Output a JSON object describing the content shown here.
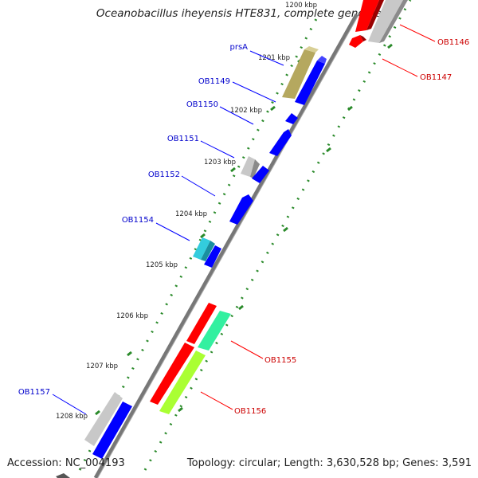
{
  "title": "Oceanobacillus iheyensis HTE831, complete genome",
  "accession": "Accession: NC_004193",
  "topology": "Topology: circular; Length: 3,630,528 bp; Genes: 3,591",
  "kbp_labels": [
    "1200 kbp",
    "1201 kbp",
    "1202 kbp",
    "1203 kbp",
    "1204 kbp",
    "1205 kbp",
    "1206 kbp",
    "1207 kbp",
    "1208 kbp"
  ],
  "gene_labels_left": [
    "prsA",
    "OB1149",
    "OB1150",
    "OB1151",
    "OB1152",
    "OB1154",
    "OB1157"
  ],
  "gene_labels_right": [
    "OB1146",
    "OB1147",
    "OB1155",
    "OB1156"
  ],
  "colors": {
    "forward_cds": "#0000ff",
    "reverse_cds": "#ff0000",
    "grey_feature": "#bfbfbf",
    "olive_feature": "#b5a85f",
    "cyan_feature": "#33ccdd",
    "teal_feature": "#33f0a0",
    "lime_feature": "#aaff33",
    "backbone": "#666666",
    "tick_dots": "#2a8a2a",
    "left_label_text": "#0000cc",
    "right_label_text": "#cc0000"
  }
}
